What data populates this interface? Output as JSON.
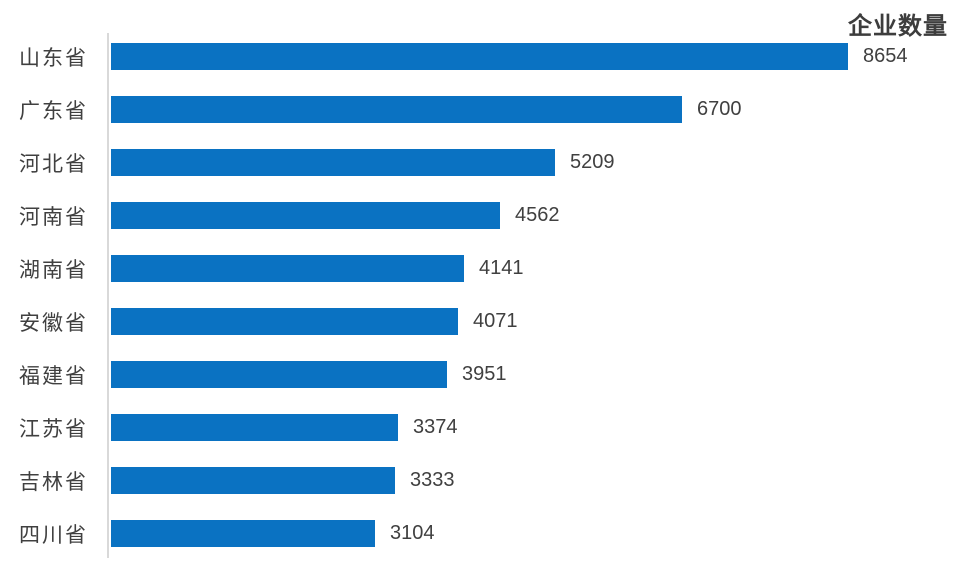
{
  "chart_data": {
    "type": "bar",
    "orientation": "horizontal",
    "title": "企业数量",
    "categories": [
      "山东省",
      "广东省",
      "河北省",
      "河南省",
      "湖南省",
      "安徽省",
      "福建省",
      "江苏省",
      "吉林省",
      "四川省"
    ],
    "values": [
      8654,
      6700,
      5209,
      4562,
      4141,
      4071,
      3951,
      3374,
      3333,
      3104
    ],
    "value_labels_shown": true,
    "xlim": [
      0,
      8654
    ],
    "grid": false,
    "legend": false,
    "bar_color": "#0a72c2",
    "axis_line_color": "#d9d9d9",
    "value_label_color": "#404040",
    "category_label_color": "#404040",
    "title_color": "#3d3d3d"
  },
  "layout_hints": {
    "bars_sorted": "descending top to bottom",
    "title_position": "top-right",
    "value_label_position": "right of bar end"
  }
}
